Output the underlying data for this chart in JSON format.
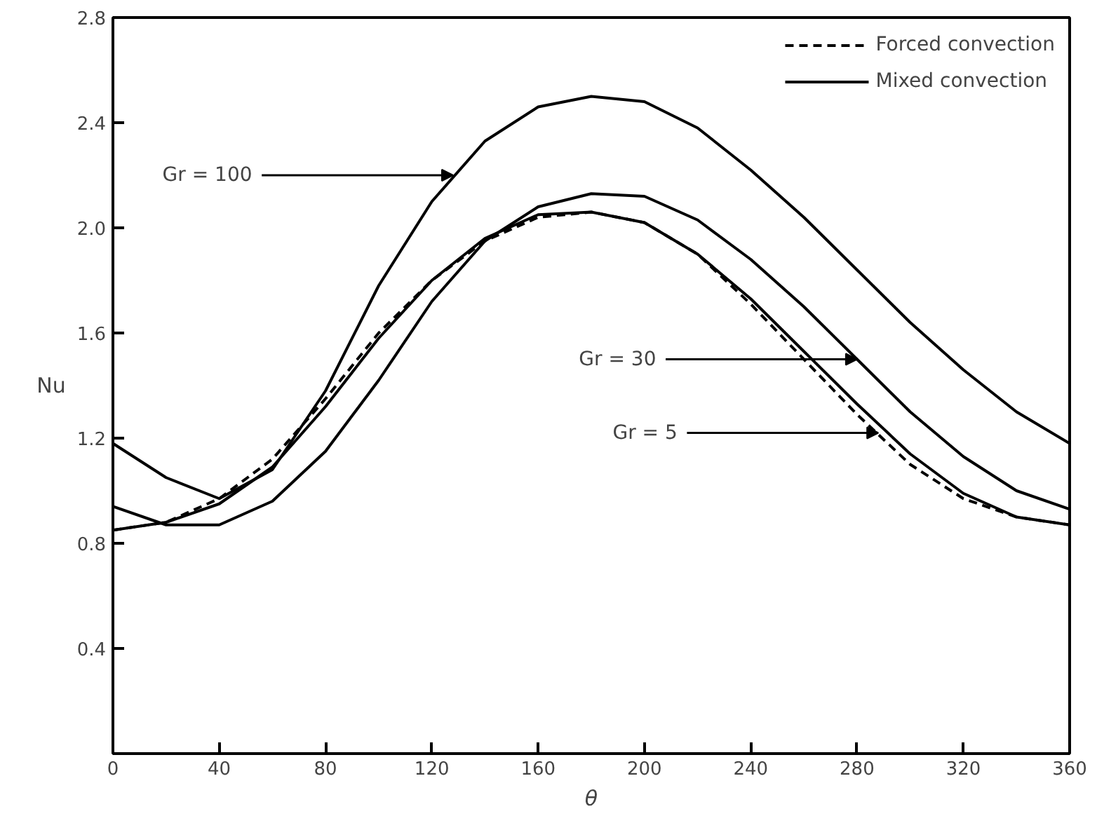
{
  "chart_data": {
    "type": "line",
    "xlabel": "θ",
    "ylabel": "Nu",
    "x": [
      0,
      20,
      40,
      60,
      80,
      100,
      120,
      140,
      160,
      180,
      200,
      220,
      240,
      260,
      280,
      300,
      320,
      340,
      360
    ],
    "series": [
      {
        "name": "Forced convection",
        "color": "#000000",
        "line_style": "dashed",
        "values": [
          0.85,
          0.88,
          0.97,
          1.12,
          1.35,
          1.6,
          1.8,
          1.95,
          2.04,
          2.06,
          2.02,
          1.9,
          1.71,
          1.5,
          1.29,
          1.1,
          0.97,
          0.9,
          0.87
        ]
      },
      {
        "name": "Mixed convection",
        "color": "#000000",
        "line_style": "solid",
        "values": [
          0.85,
          0.88,
          0.95,
          1.09,
          1.32,
          1.58,
          1.8,
          1.96,
          2.05,
          2.06,
          2.02,
          1.9,
          1.73,
          1.53,
          1.33,
          1.14,
          0.99,
          0.9,
          0.87
        ]
      },
      {
        "color": "#000000",
        "line_style": "solid",
        "values": [
          0.94,
          0.87,
          0.87,
          0.96,
          1.15,
          1.42,
          1.72,
          1.95,
          2.08,
          2.13,
          2.12,
          2.03,
          1.88,
          1.7,
          1.5,
          1.3,
          1.13,
          1.0,
          0.93
        ]
      },
      {
        "color": "#000000",
        "line_style": "solid",
        "values": [
          1.18,
          1.05,
          0.97,
          1.08,
          1.38,
          1.78,
          2.1,
          2.33,
          2.46,
          2.5,
          2.48,
          2.38,
          2.22,
          2.04,
          1.84,
          1.64,
          1.46,
          1.3,
          1.18
        ]
      }
    ],
    "xlim": [
      0,
      360
    ],
    "ylim": [
      0,
      2.8
    ],
    "xticks": [
      0,
      40,
      80,
      120,
      160,
      200,
      240,
      280,
      320,
      360
    ],
    "yticks": [
      0.4,
      0.8,
      1.2,
      1.6,
      {
        "value": 2,
        "label": "2.0"
      },
      2.4,
      2.8
    ],
    "annotations": [
      {
        "text": "Gr = 100",
        "x": 128,
        "y": 2.2
      },
      {
        "text": "Gr = 30",
        "x": 280,
        "y": 1.5
      },
      {
        "text": "Gr = 5",
        "x": 288,
        "y": 1.22
      }
    ],
    "legend": "top right",
    "grid": false,
    "marker": "none"
  }
}
